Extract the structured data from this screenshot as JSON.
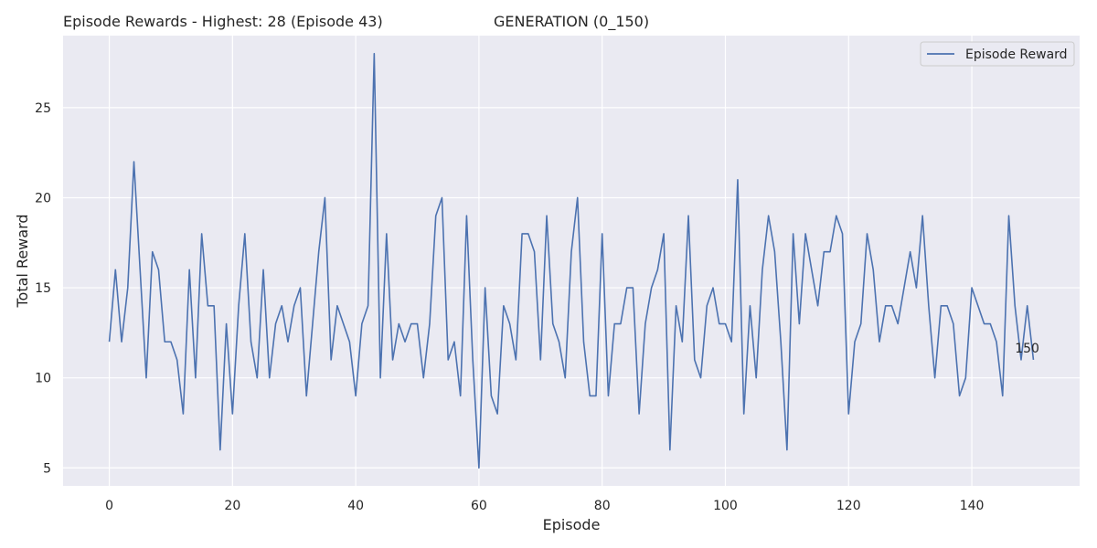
{
  "titles": {
    "left": "Episode Rewards - Highest: 28 (Episode 43)",
    "right": "GENERATION (0_150)"
  },
  "chart_data": {
    "type": "line",
    "title": "Episode Rewards - Highest: 28 (Episode 43)",
    "xlabel": "Episode",
    "ylabel": "Total Reward",
    "xlim": [
      -7.5,
      157.5
    ],
    "ylim": [
      4.0,
      29.0
    ],
    "xticks": [
      0,
      20,
      40,
      60,
      80,
      100,
      120,
      140
    ],
    "yticks": [
      5,
      10,
      15,
      20,
      25
    ],
    "grid": true,
    "legend_position": "top-right",
    "line_color": "#4c72b0",
    "background_color": "#eaeaf2",
    "series": [
      {
        "name": "Episode Reward",
        "x_start": 0,
        "values": [
          12,
          16,
          12,
          15,
          22,
          16,
          10,
          17,
          16,
          12,
          12,
          11,
          8,
          16,
          10,
          18,
          14,
          14,
          6,
          13,
          8,
          14,
          18,
          12,
          10,
          16,
          10,
          13,
          14,
          12,
          14,
          15,
          9,
          13,
          17,
          20,
          11,
          14,
          13,
          12,
          9,
          13,
          14,
          28,
          10,
          18,
          11,
          13,
          12,
          13,
          13,
          10,
          13,
          19,
          20,
          11,
          12,
          9,
          19,
          11,
          5,
          15,
          9,
          8,
          14,
          13,
          11,
          18,
          18,
          17,
          11,
          19,
          13,
          12,
          10,
          17,
          20,
          12,
          9,
          9,
          18,
          9,
          13,
          13,
          15,
          15,
          8,
          13,
          15,
          16,
          18,
          6,
          14,
          12,
          19,
          11,
          10,
          14,
          15,
          13,
          13,
          12,
          21,
          8,
          14,
          10,
          16,
          19,
          17,
          12,
          6,
          18,
          13,
          18,
          16,
          14,
          17,
          17,
          19,
          18,
          8,
          12,
          13,
          18,
          16,
          12,
          14,
          14,
          13,
          15,
          17,
          15,
          19,
          14,
          10,
          14,
          14,
          13,
          9,
          10,
          15,
          14,
          13,
          13,
          12,
          9,
          19,
          14,
          11,
          14,
          11
        ]
      }
    ],
    "annotations": [
      {
        "text": "150",
        "x": 147,
        "y": 11.4
      }
    ]
  }
}
